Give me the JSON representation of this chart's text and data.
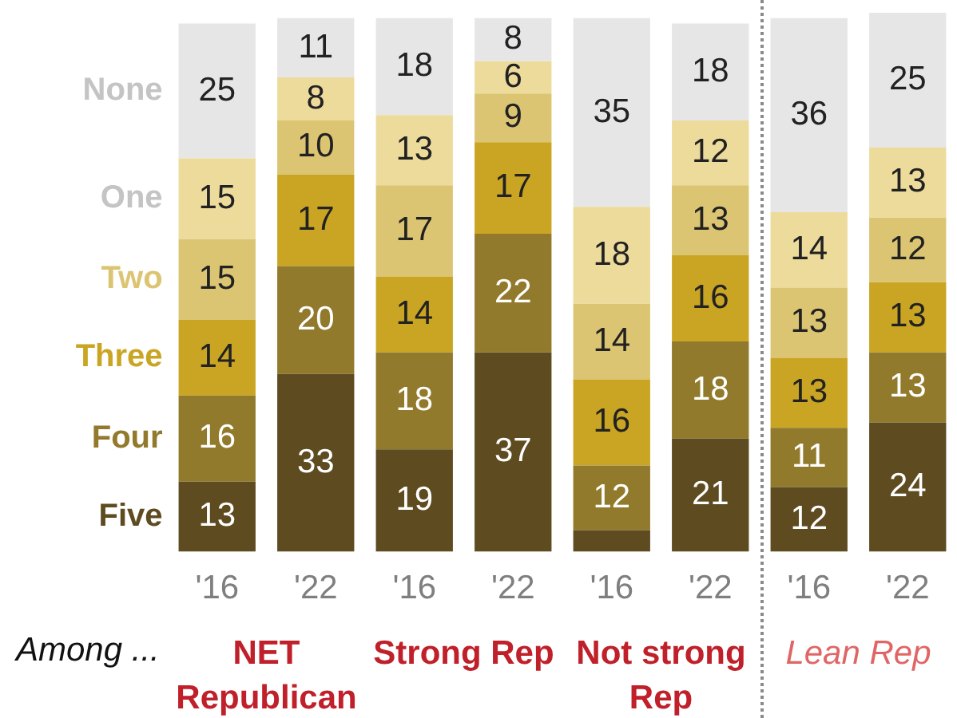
{
  "chart_data": {
    "type": "bar",
    "stacked": true,
    "legend": "left",
    "tick_labels": "x",
    "ylim": [
      0,
      100
    ],
    "categories": [
      "'16",
      "'22",
      "'16",
      "'22",
      "'16",
      "'22",
      "'16",
      "'22"
    ],
    "series": [
      {
        "name": "Five",
        "color": "#5e4b20",
        "values": [
          13,
          33,
          19,
          37,
          4,
          21,
          12,
          24
        ],
        "value_labels": [
          "13",
          "33",
          "19",
          "37",
          null,
          "21",
          "12",
          "24"
        ]
      },
      {
        "name": "Four",
        "color": "#927a2c",
        "values": [
          16,
          20,
          18,
          22,
          12,
          18,
          11,
          13
        ],
        "value_labels": [
          "16",
          "20",
          "18",
          "22",
          "12",
          "18",
          "11",
          "13"
        ]
      },
      {
        "name": "Three",
        "color": "#caa523",
        "values": [
          14,
          17,
          14,
          17,
          16,
          16,
          13,
          13
        ],
        "value_labels": [
          "14",
          "17",
          "14",
          "17",
          "16",
          "16",
          "13",
          "13"
        ]
      },
      {
        "name": "Two",
        "color": "#dcc572",
        "values": [
          15,
          10,
          17,
          9,
          14,
          13,
          13,
          12
        ],
        "value_labels": [
          "15",
          "10",
          "17",
          "9",
          "14",
          "13",
          "13",
          "12"
        ]
      },
      {
        "name": "One",
        "color": "#eddb9c",
        "values": [
          15,
          8,
          13,
          6,
          18,
          12,
          14,
          13
        ],
        "value_labels": [
          "15",
          "8",
          "13",
          "6",
          "18",
          "12",
          "14",
          "13"
        ]
      },
      {
        "name": "None",
        "color": "#e6e6e6",
        "values": [
          25,
          11,
          18,
          8,
          35,
          18,
          36,
          25
        ],
        "value_labels": [
          "25",
          "11",
          "18",
          "8",
          "35",
          "18",
          "36",
          "25"
        ]
      }
    ],
    "annotations": [
      "Among ...",
      "NET Republican",
      "Strong Rep",
      "Not strong Rep",
      "Lean Rep"
    ]
  }
}
